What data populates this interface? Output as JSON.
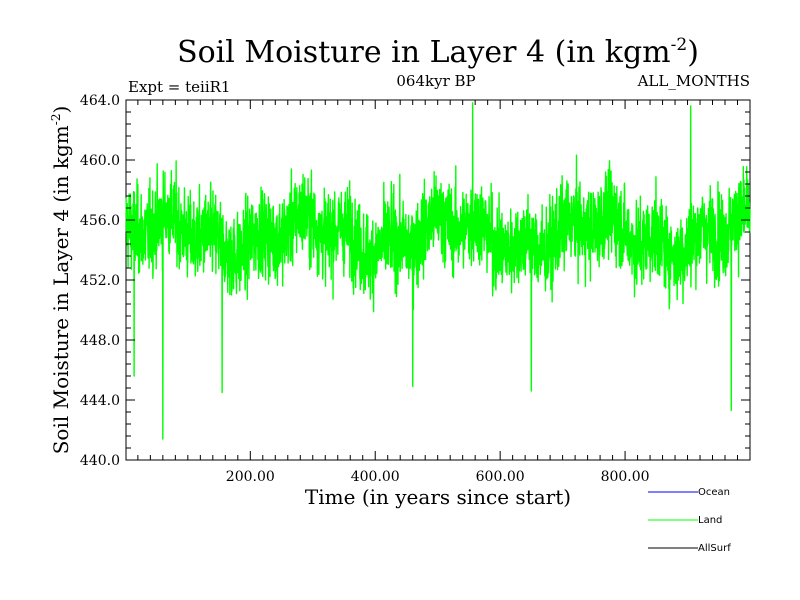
{
  "chart_data": {
    "type": "line",
    "title": "Soil Moisture in Layer 4 (in kgm",
    "title_sup": "-2",
    "title_end": ")",
    "subtitle_left": "Expt = teiiR1",
    "subtitle_center": "064kyr BP",
    "subtitle_right": "ALL_MONTHS",
    "xlabel": "Time (in years since start)",
    "ylabel": "Soil Moisture in Layer 4 (in kgm",
    "ylabel_sup": "-2",
    "ylabel_end": ")",
    "xlim": [
      1,
      1000
    ],
    "ylim": [
      440.0,
      464.0
    ],
    "x_ticks": [
      200,
      400,
      600,
      800
    ],
    "x_tick_labels": [
      "200.00",
      "400.00",
      "600.00",
      "800.00"
    ],
    "y_ticks": [
      440,
      444,
      448,
      452,
      456,
      460,
      464
    ],
    "y_tick_labels": [
      "440.0",
      "444.0",
      "448.0",
      "452.0",
      "456.0",
      "460.0",
      "464.0"
    ],
    "series": [
      {
        "name": "Land",
        "color": "#00ff00",
        "mean": 455.0,
        "typical_range": [
          450.0,
          460.0
        ],
        "min": {
          "x": 60,
          "y": 441.4
        },
        "max": {
          "x": 556,
          "y": 463.8
        },
        "approximate": true
      },
      {
        "name": "Ocean",
        "color": "#0000ff",
        "values": []
      },
      {
        "name": "AllSurf",
        "color": "#000000",
        "values": []
      }
    ],
    "legend": {
      "placement": "bottom-right",
      "entries": [
        {
          "label": "Ocean",
          "color": "#0000ff"
        },
        {
          "label": "Land",
          "color": "#00ff00"
        },
        {
          "label": "AllSurf",
          "color": "#000000"
        }
      ]
    },
    "grid": false
  }
}
